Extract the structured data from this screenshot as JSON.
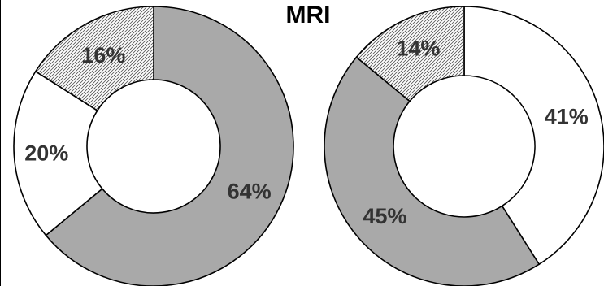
{
  "chart_data": [
    {
      "type": "pie",
      "variant": "donut",
      "title": "MRI",
      "slices": [
        {
          "label": "64%",
          "value": 64,
          "fill": "#a9a9a9",
          "pattern": "solid"
        },
        {
          "label": "20%",
          "value": 20,
          "fill": "#ffffff",
          "pattern": "solid"
        },
        {
          "label": "16%",
          "value": 16,
          "fill": "#ffffff",
          "pattern": "hatch"
        }
      ]
    },
    {
      "type": "pie",
      "variant": "donut",
      "title": "",
      "slices": [
        {
          "label": "41%",
          "value": 41,
          "fill": "#ffffff",
          "pattern": "solid"
        },
        {
          "label": "45%",
          "value": 45,
          "fill": "#a9a9a9",
          "pattern": "solid"
        },
        {
          "label": "14%",
          "value": 14,
          "fill": "#ffffff",
          "pattern": "hatch"
        }
      ]
    }
  ],
  "colors": {
    "outline": "#000000",
    "gray": "#a9a9a9",
    "label": "#333333"
  }
}
